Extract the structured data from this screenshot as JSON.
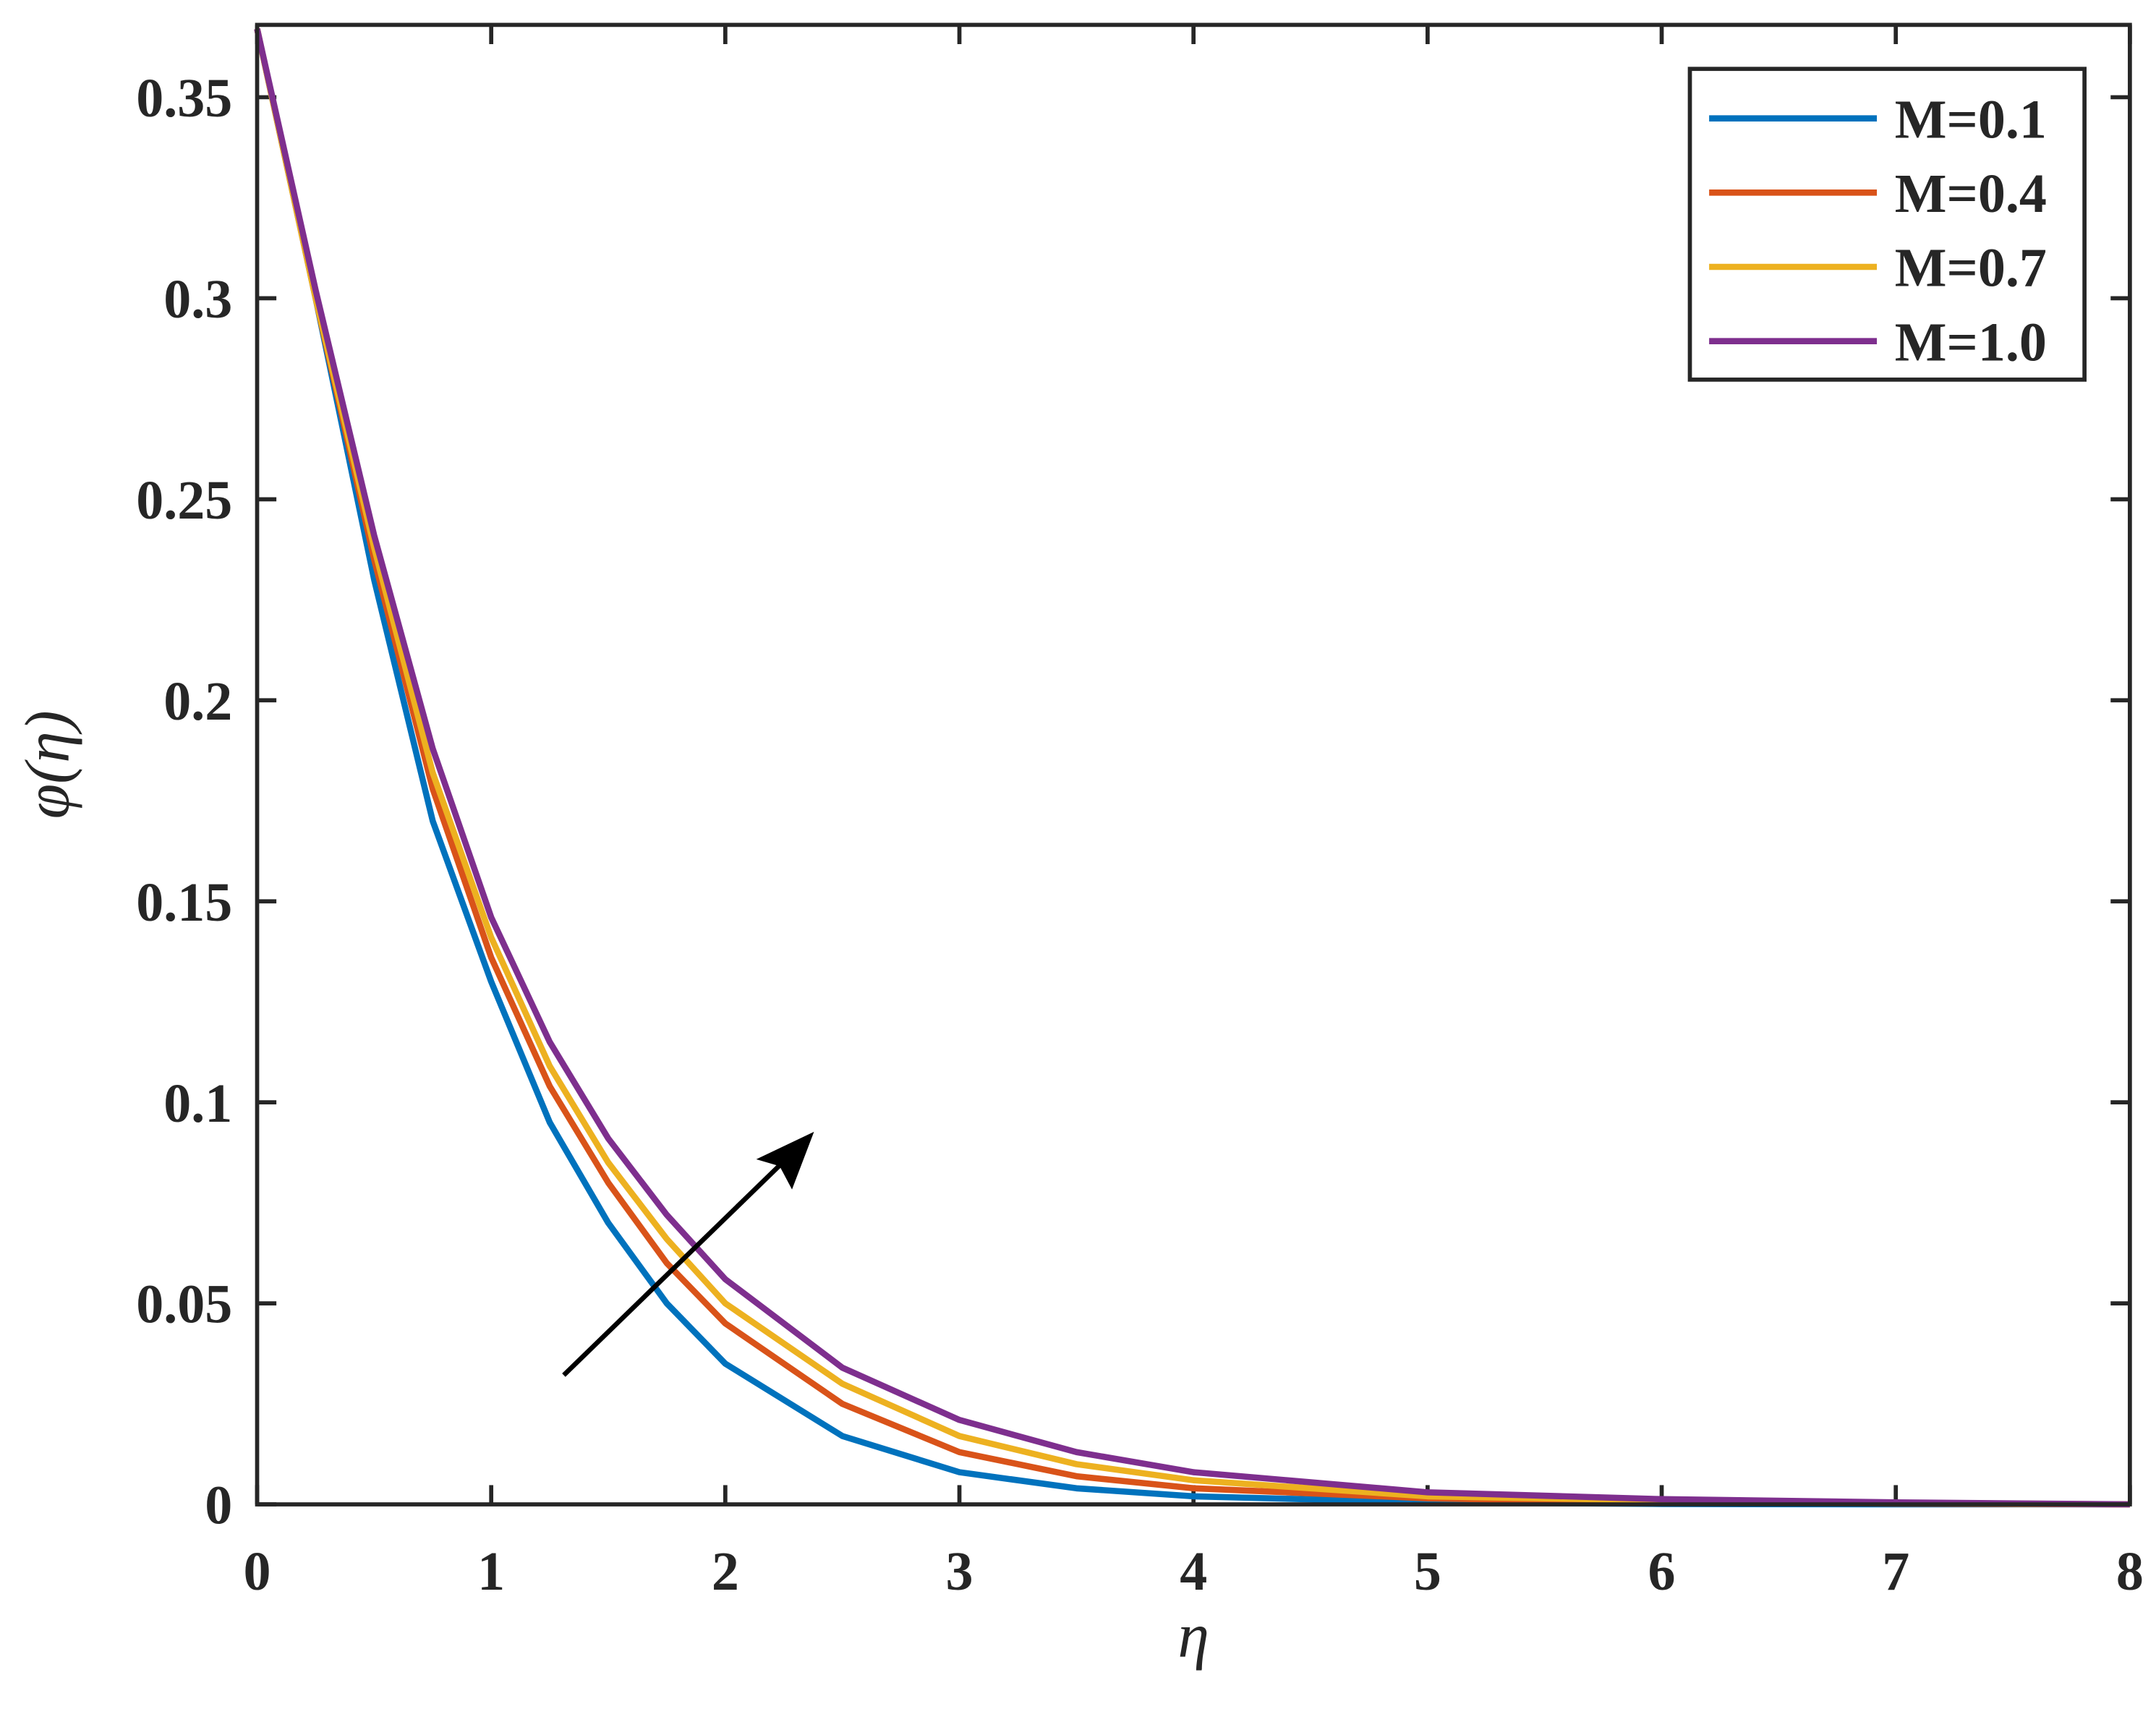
{
  "chart_data": {
    "type": "line",
    "x_label": "η",
    "y_label": "φ(η)",
    "x": [
      0,
      0.25,
      0.5,
      0.75,
      1,
      1.25,
      1.5,
      1.75,
      2,
      2.5,
      3,
      3.5,
      4,
      5,
      6,
      7,
      8
    ],
    "series": [
      {
        "name": "M=0.1",
        "color": "#0072bd",
        "values": [
          0.367,
          0.3,
          0.23,
          0.17,
          0.13,
          0.095,
          0.07,
          0.05,
          0.035,
          0.017,
          0.008,
          0.004,
          0.002,
          0.0005,
          0.0001,
          0,
          0
        ]
      },
      {
        "name": "M=0.4",
        "color": "#d95319",
        "values": [
          0.367,
          0.3,
          0.235,
          0.178,
          0.136,
          0.104,
          0.08,
          0.06,
          0.045,
          0.025,
          0.013,
          0.007,
          0.004,
          0.0015,
          0.0005,
          0.0002,
          0
        ]
      },
      {
        "name": "M=0.7",
        "color": "#edb120",
        "values": [
          0.367,
          0.3,
          0.238,
          0.182,
          0.141,
          0.109,
          0.085,
          0.066,
          0.05,
          0.03,
          0.017,
          0.01,
          0.006,
          0.002,
          0.001,
          0.0004,
          0
        ]
      },
      {
        "name": "M=1.0",
        "color": "#7e2f8e",
        "values": [
          0.367,
          0.302,
          0.241,
          0.188,
          0.146,
          0.115,
          0.091,
          0.072,
          0.056,
          0.034,
          0.021,
          0.013,
          0.008,
          0.003,
          0.0013,
          0.0005,
          0
        ]
      }
    ],
    "xlim": [
      0,
      8
    ],
    "ylim": [
      0,
      0.368
    ],
    "xticks": [
      0,
      1,
      2,
      3,
      4,
      5,
      6,
      7,
      8
    ],
    "yticks": [
      0,
      0.05,
      0.1,
      0.15,
      0.2,
      0.25,
      0.3,
      0.35
    ],
    "legend": "upper right"
  }
}
